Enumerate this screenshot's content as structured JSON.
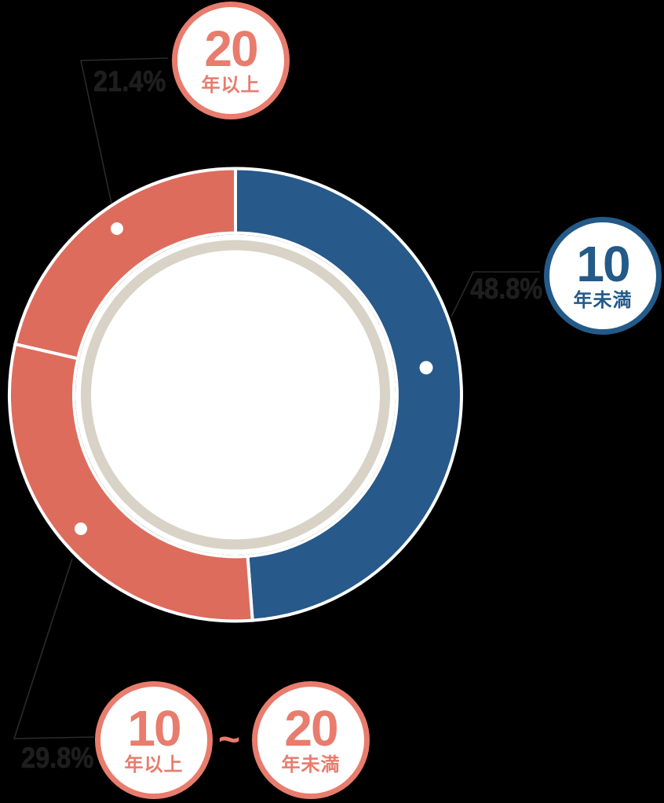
{
  "colors": {
    "background": "#000000",
    "segment_red": "#dd6c5c",
    "segment_blue": "#27598a",
    "badge_red": "#e87c6d",
    "badge_blue": "#235a88",
    "badge_fill": "#ffffff",
    "inner_ring_beige": "#d8d3c6",
    "inner_white": "#ffffff",
    "divider_white": "#ffffff",
    "marker_dot": "#ffffff",
    "leader_line": "#2a2a2a",
    "percent_text": "#1e1e1e"
  },
  "chart_data": {
    "type": "pie",
    "donut": true,
    "title": "",
    "start_angle_deg": 0,
    "direction": "clockwise",
    "grid": false,
    "legend": "none",
    "segments": [
      {
        "label": "10年未満",
        "value": 48.8,
        "display": "48.8%",
        "color": "#27598a"
      },
      {
        "label": "10年以上〜20年未満",
        "value": 29.8,
        "display": "29.8%",
        "color": "#dd6c5c"
      },
      {
        "label": "20年以上",
        "value": 21.4,
        "display": "21.4%",
        "color": "#dd6c5c"
      }
    ]
  },
  "badges": {
    "top": {
      "number": "20",
      "label": "年以上"
    },
    "right": {
      "number": "10",
      "label": "年未満"
    },
    "bottom_left": {
      "number": "10",
      "label": "年以上"
    },
    "separator": "~",
    "bottom_right": {
      "number": "20",
      "label": "年未満"
    }
  }
}
